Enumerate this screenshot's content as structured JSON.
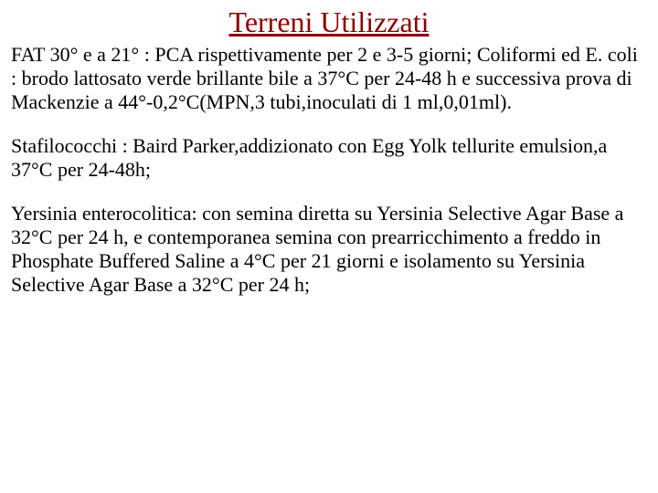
{
  "title": {
    "text": "Terreni Utilizzati",
    "color": "#8b0000",
    "fontsize": 32,
    "underline": true,
    "align": "center"
  },
  "paragraphs": [
    "FAT 30° e a 21° : PCA rispettivamente per 2 e 3-5 giorni; Coliformi ed E. coli : brodo lattosato verde brillante bile a 37°C per 24-48 h e successiva prova di Mackenzie a 44°-0,2°C(MPN,3 tubi,inoculati di 1 ml,0,01ml).",
    "Stafilococchi : Baird Parker,addizionato con Egg Yolk tellurite emulsion,a 37°C per 24-48h;",
    "Yersinia enterocolitica: con semina diretta su Yersinia Selective Agar Base a 32°C per 24 h, e contemporanea semina con prearricchimento a freddo in Phosphate Buffered Saline a 4°C per 21 giorni e isolamento su Yersinia Selective Agar Base a 32°C per 24 h;"
  ],
  "style": {
    "body_fontsize": 22,
    "body_color": "#000000",
    "background_color": "#ffffff",
    "font_family": "Times New Roman"
  }
}
